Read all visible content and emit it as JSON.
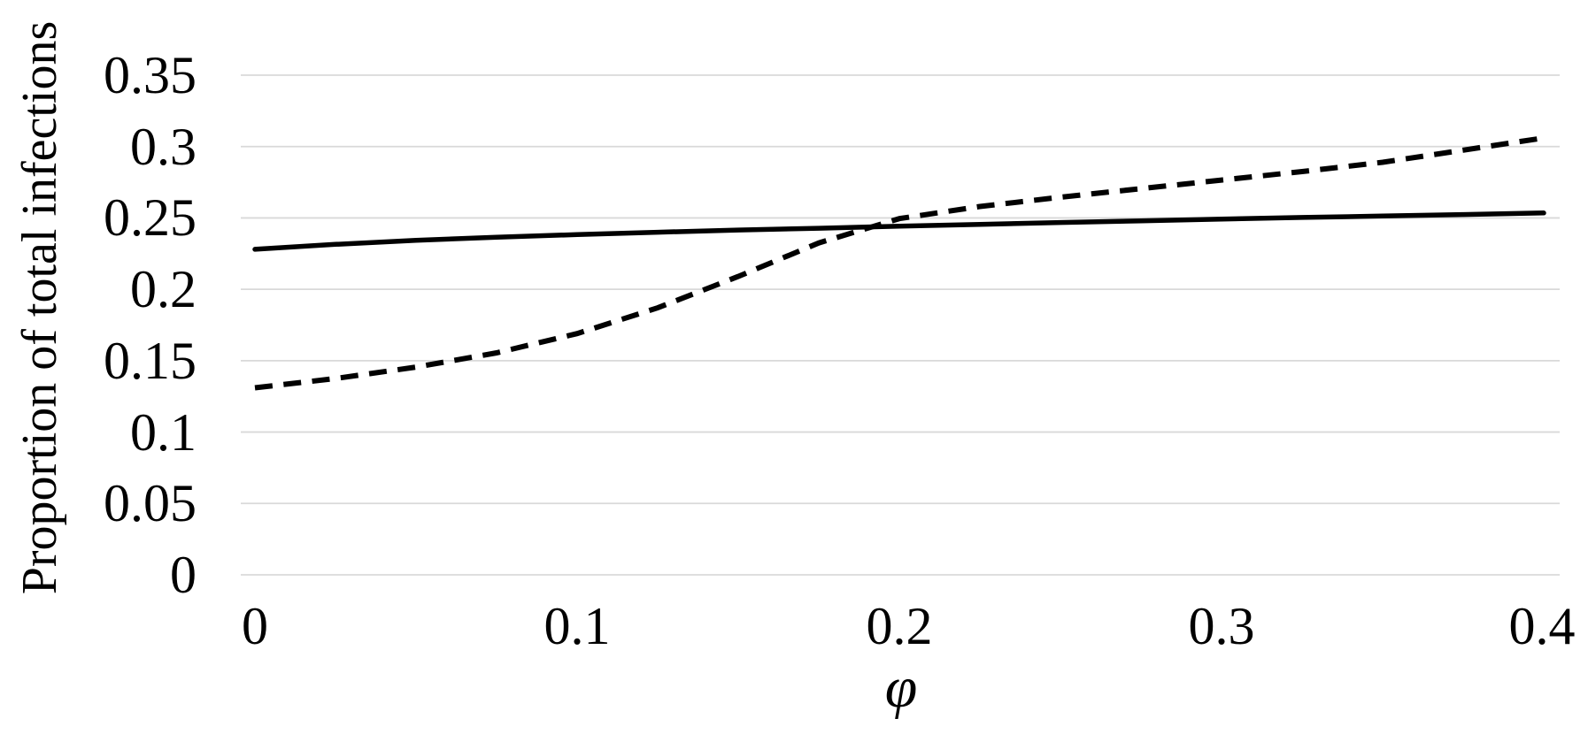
{
  "figure": {
    "background": "#ffffff",
    "text_color": "#000000"
  },
  "chart_data": {
    "type": "line",
    "title": "",
    "xlabel": "φ",
    "ylabel": "Proportion of total infections",
    "xlim": [
      0,
      0.4
    ],
    "ylim": [
      0,
      0.35
    ],
    "grid": "horizontal-only",
    "gridline_color": "#d9d9d9",
    "legend": "none",
    "x_ticks": [
      0,
      0.1,
      0.2,
      0.3,
      0.4
    ],
    "x_tick_labels": [
      "0",
      "0.1",
      "0.2",
      "0.3",
      "0.4"
    ],
    "y_ticks": [
      0,
      0.05,
      0.1,
      0.15,
      0.2,
      0.25,
      0.3,
      0.35
    ],
    "y_tick_labels": [
      "0",
      "0.05",
      "0.1",
      "0.15",
      "0.2",
      "0.25",
      "0.3",
      "0.35"
    ],
    "x": [
      0,
      0.025,
      0.05,
      0.075,
      0.1,
      0.125,
      0.15,
      0.175,
      0.2,
      0.225,
      0.25,
      0.275,
      0.3,
      0.325,
      0.35,
      0.375,
      0.4
    ],
    "series": [
      {
        "name": "solid",
        "style": "solid",
        "color": "#000000",
        "values": [
          0.228,
          0.2315,
          0.2343,
          0.2365,
          0.2383,
          0.24,
          0.2415,
          0.2428,
          0.2442,
          0.2455,
          0.2468,
          0.248,
          0.2492,
          0.2503,
          0.2513,
          0.2524,
          0.2535
        ]
      },
      {
        "name": "dashed",
        "style": "dashed",
        "color": "#000000",
        "values": [
          0.131,
          0.1375,
          0.1455,
          0.1555,
          0.169,
          0.187,
          0.209,
          0.2325,
          0.2495,
          0.258,
          0.2645,
          0.2705,
          0.2765,
          0.2825,
          0.289,
          0.2975,
          0.306
        ]
      }
    ]
  }
}
